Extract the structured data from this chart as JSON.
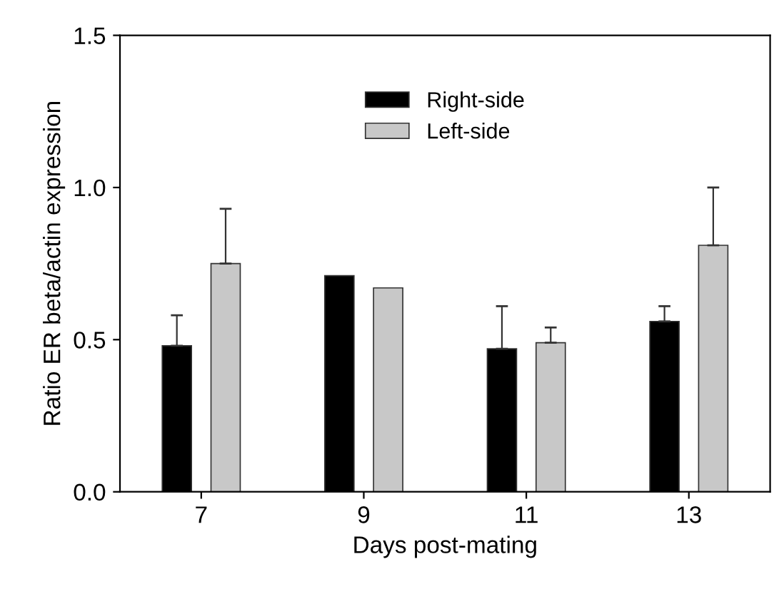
{
  "chart_data": {
    "type": "bar",
    "xlabel": "Days post-mating",
    "ylabel": "Ratio ER beta/actin expression",
    "categories": [
      "7",
      "9",
      "11",
      "13"
    ],
    "series": [
      {
        "name": "Right-side",
        "color": "#000000",
        "values": [
          0.48,
          0.71,
          0.47,
          0.56
        ],
        "errors": [
          [
            0.48,
            0.58
          ],
          null,
          [
            0.47,
            0.61
          ],
          [
            0.56,
            0.61
          ]
        ]
      },
      {
        "name": "Left-side",
        "color": "#c8c8c8",
        "values": [
          0.75,
          0.67,
          0.49,
          0.81
        ],
        "errors": [
          [
            0.75,
            0.93
          ],
          null,
          [
            0.49,
            0.54
          ],
          [
            0.81,
            1.0
          ]
        ]
      }
    ],
    "ylim": [
      0,
      1.5
    ],
    "yticks": [
      {
        "value": 0,
        "label": "0.0"
      },
      0.5,
      {
        "value": 1,
        "label": "1.0"
      },
      1.5
    ],
    "legend": "top",
    "grid": false
  }
}
